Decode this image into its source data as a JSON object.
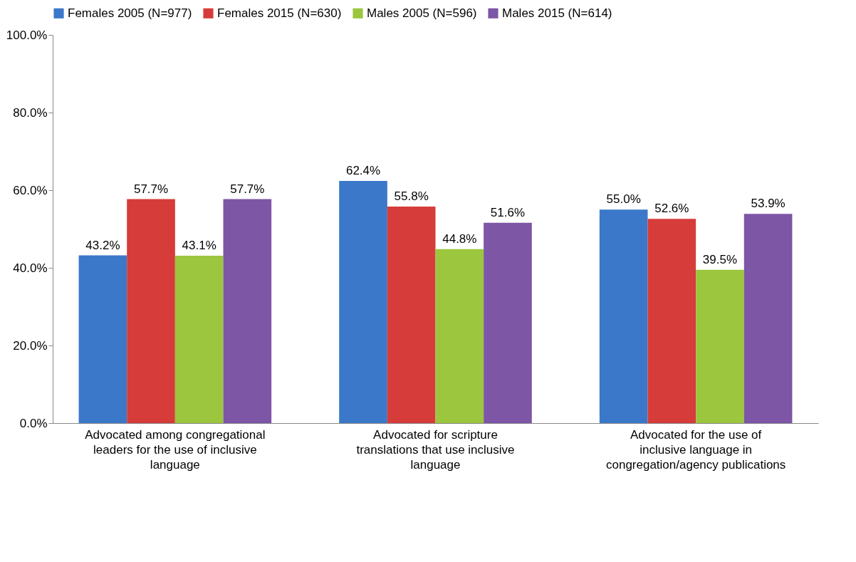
{
  "chart_data": {
    "type": "bar",
    "categories": [
      "Advocated among congregational leaders for the use of inclusive language",
      "Advocated for scripture translations that use inclusive language",
      "Advocated for the use of inclusive language in congregation/agency publications"
    ],
    "series": [
      {
        "name": "Females 2005 (N=977)",
        "color": "#3b78c9",
        "values": [
          43.2,
          62.4,
          55.0
        ],
        "value_labels": [
          "43.2%",
          "62.4%",
          "55.0%"
        ]
      },
      {
        "name": "Females 2015 (N=630)",
        "color": "#d63c3a",
        "values": [
          57.7,
          55.8,
          52.6
        ],
        "value_labels": [
          "57.7%",
          "55.8%",
          "52.6%"
        ]
      },
      {
        "name": "Males 2005 (N=596)",
        "color": "#9bc63d",
        "values": [
          43.1,
          44.8,
          39.5
        ],
        "value_labels": [
          "43.1%",
          "44.8%",
          "39.5%"
        ]
      },
      {
        "name": "Males 2015 (N=614)",
        "color": "#7d56a6",
        "values": [
          57.7,
          51.6,
          53.9
        ],
        "value_labels": [
          "57.7%",
          "51.6%",
          "53.9%"
        ]
      }
    ],
    "ylim": [
      0,
      100
    ],
    "yticks": [
      {
        "value": 0,
        "label": "0.0%"
      },
      {
        "value": 20,
        "label": "20.0%"
      },
      {
        "value": 40,
        "label": "40.0%"
      },
      {
        "value": 60,
        "label": "60.0%"
      },
      {
        "value": 80,
        "label": "80.0%"
      },
      {
        "value": 100,
        "label": "100.0%"
      }
    ],
    "legend": "top",
    "grid": false
  }
}
